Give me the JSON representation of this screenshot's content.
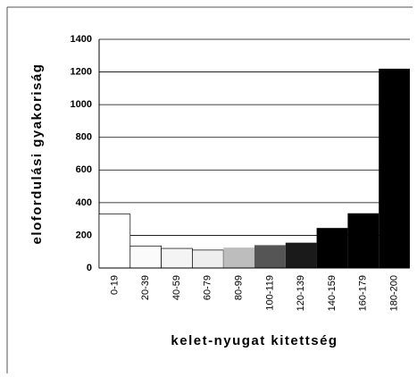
{
  "chart_data": {
    "type": "bar",
    "xlabel": "kelet-nyugat kitettség",
    "ylabel": "elofordulási gyakoriság",
    "categories": [
      "0-19",
      "20-39",
      "40-59",
      "60-79",
      "80-99",
      "100-119",
      "120-139",
      "140-159",
      "160-179",
      "180-200"
    ],
    "values": [
      330,
      135,
      120,
      110,
      125,
      140,
      155,
      245,
      335,
      1220
    ],
    "colors": [
      "#ffffff",
      "#fbfbfb",
      "#f4f4f4",
      "#eeeeee",
      "#bdbdbd",
      "#555555",
      "#1a1a1a",
      "#000000",
      "#000000",
      "#000000"
    ],
    "ylim": [
      0,
      1400
    ],
    "yticks": [
      0,
      200,
      400,
      600,
      800,
      1000,
      1200,
      1400
    ],
    "grid": true
  }
}
